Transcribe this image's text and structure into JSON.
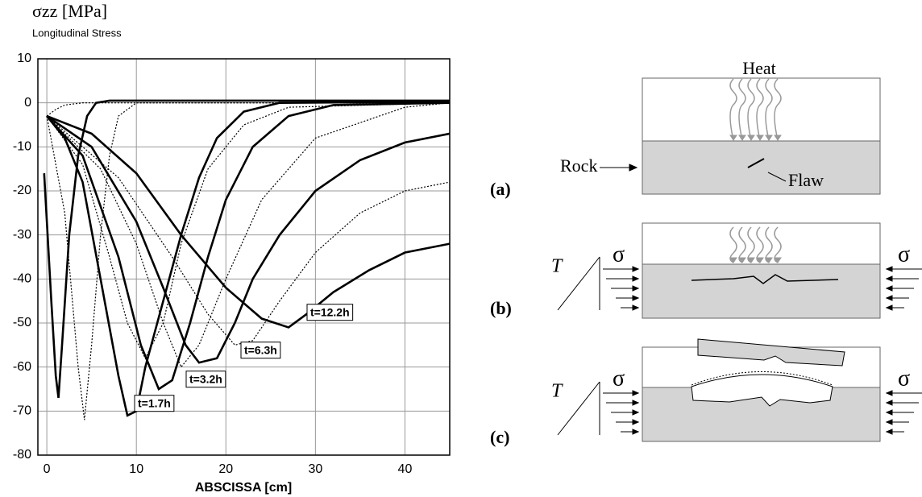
{
  "chart_data": {
    "type": "line",
    "title": "σzz [MPa]",
    "subtitle": "Longitudinal Stress",
    "x_label": "ABSCISSA [cm]",
    "xlim": [
      -1,
      45
    ],
    "xticks": [
      0,
      10,
      20,
      30,
      40
    ],
    "ylim": [
      -80,
      10
    ],
    "yticks": [
      10,
      0,
      -10,
      -20,
      -30,
      -40,
      -50,
      -60,
      -70,
      -80
    ],
    "grid": true,
    "series": [
      {
        "color": "#000000",
        "style": "solid",
        "x": [
          -0.3,
          0.5,
          1,
          1.3,
          1.7,
          2.5,
          3.5,
          4.5,
          5.5,
          7,
          45
        ],
        "values": [
          -16,
          -45,
          -62,
          -67,
          -55,
          -30,
          -12,
          -3,
          0,
          0.5,
          0.5
        ]
      },
      {
        "color": "#000000",
        "style": "solid",
        "x": [
          0,
          2,
          4,
          6,
          8,
          9,
          10,
          11,
          13,
          15,
          17,
          19,
          22,
          26,
          45
        ],
        "values": [
          -3,
          -8,
          -18,
          -40,
          -62,
          -71,
          -70,
          -60,
          -45,
          -30,
          -17,
          -8,
          -2,
          0,
          0.3
        ]
      },
      {
        "color": "#000000",
        "style": "solid",
        "x": [
          0,
          4,
          8,
          10.5,
          12.5,
          14,
          16,
          18,
          20,
          23,
          27,
          32,
          45
        ],
        "values": [
          -3,
          -12,
          -35,
          -55,
          -65,
          -63,
          -50,
          -35,
          -22,
          -10,
          -3,
          -0.5,
          0
        ]
      },
      {
        "color": "#000000",
        "style": "solid",
        "x": [
          0,
          5,
          10,
          13,
          15.5,
          17,
          19,
          21,
          23,
          26,
          30,
          35,
          40,
          45
        ],
        "values": [
          -3,
          -10,
          -27,
          -42,
          -55,
          -59,
          -58,
          -50,
          -40,
          -30,
          -20,
          -13,
          -9,
          -7
        ]
      },
      {
        "color": "#000000",
        "style": "solid",
        "x": [
          0,
          5,
          10,
          15,
          20,
          24,
          27,
          29,
          32,
          36,
          40,
          45
        ],
        "values": [
          -3,
          -7,
          -16,
          -30,
          -42,
          -49,
          -51,
          -48,
          -43,
          -38,
          -34,
          -32
        ]
      },
      {
        "color": "#000000",
        "style": "dotted",
        "x": [
          0,
          2,
          3.5,
          4.2,
          5,
          6,
          7,
          8,
          10,
          45
        ],
        "values": [
          -3,
          -25,
          -60,
          -72,
          -55,
          -30,
          -12,
          -3,
          0,
          0
        ]
      },
      {
        "color": "#000000",
        "style": "dotted",
        "x": [
          0,
          4,
          7,
          9,
          11,
          13,
          15,
          18,
          22,
          27,
          45
        ],
        "values": [
          -3,
          -14,
          -35,
          -50,
          -58,
          -50,
          -32,
          -15,
          -5,
          -1,
          0
        ]
      },
      {
        "color": "#000000",
        "style": "dotted",
        "x": [
          0,
          6,
          10,
          13,
          15,
          17,
          20,
          24,
          30,
          40,
          45
        ],
        "values": [
          -3,
          -15,
          -32,
          -50,
          -60,
          -55,
          -40,
          -22,
          -8,
          -1,
          0
        ]
      },
      {
        "color": "#000000",
        "style": "dotted",
        "x": [
          0,
          8,
          14,
          18,
          21,
          23,
          26,
          30,
          35,
          40,
          45
        ],
        "values": [
          -3,
          -17,
          -35,
          -48,
          -55,
          -54,
          -45,
          -34,
          -25,
          -20,
          -18
        ]
      },
      {
        "color": "#000000",
        "style": "dotted",
        "x": [
          0,
          1,
          2,
          4,
          45
        ],
        "values": [
          -3,
          -1.5,
          -0.5,
          0,
          0
        ]
      }
    ],
    "annotations": [
      "t=1.7h",
      "t=3.2h",
      "t=6.3h",
      "t=12.2h"
    ]
  },
  "diagram": {
    "heat": "Heat",
    "rock": "Rock",
    "flaw": "Flaw",
    "panels": [
      "(a)",
      "(b)",
      "(c)"
    ],
    "temperature": "T",
    "stress": "σ"
  }
}
